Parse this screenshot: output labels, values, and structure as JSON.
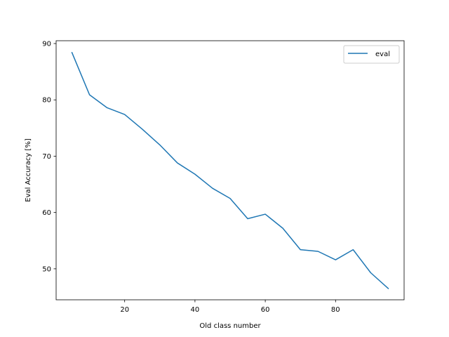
{
  "chart_data": {
    "type": "line",
    "title": "",
    "xlabel": "Old class number",
    "ylabel": "Eval Accuracy [%]",
    "xlim": [
      0.5,
      99.5
    ],
    "ylim": [
      44.5,
      90.5
    ],
    "xticks": [
      20,
      40,
      60,
      80
    ],
    "yticks": [
      50,
      60,
      70,
      80,
      90
    ],
    "grid": false,
    "legend_position": "top-right",
    "series": [
      {
        "name": "eval",
        "color": "#1f77b4",
        "x": [
          5,
          10,
          15,
          20,
          25,
          30,
          35,
          40,
          45,
          50,
          55,
          60,
          65,
          70,
          75,
          80,
          85,
          90,
          95
        ],
        "y": [
          88.4,
          80.9,
          78.6,
          77.4,
          74.8,
          72.0,
          68.8,
          66.8,
          64.3,
          62.5,
          58.9,
          59.7,
          57.2,
          53.4,
          53.1,
          51.6,
          53.4,
          49.3,
          46.5
        ]
      }
    ]
  }
}
